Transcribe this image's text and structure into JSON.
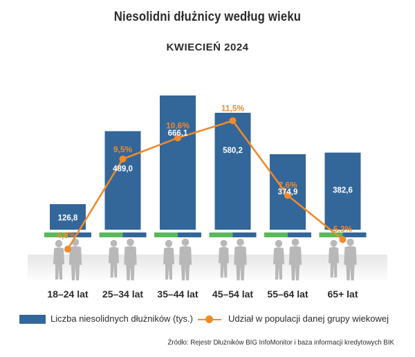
{
  "title": "Niesolidni dłużnicy według wieku",
  "subtitle": "KWIECIEŃ 2024",
  "chart_data": {
    "type": "bar",
    "categories": [
      "18–24 lat",
      "25–34 lat",
      "35–44 lat",
      "45–54 lat",
      "55–64 lat",
      "65+ lat"
    ],
    "series": [
      {
        "name": "Liczba niesolidnych dłużników (tys.)",
        "type": "bar",
        "values": [
          126.8,
          489.0,
          666.1,
          580.2,
          374.9,
          382.6
        ],
        "labels": [
          "126,8",
          "489,0",
          "666,1",
          "580,2",
          "374,9",
          "382,6"
        ],
        "color": "#336699"
      },
      {
        "name": "Udział w populacji danej grupy wiekowej",
        "type": "line",
        "values": [
          4.8,
          9.5,
          10.6,
          11.5,
          7.6,
          5.3
        ],
        "labels": [
          "4,8%",
          "9,5%",
          "10,6%",
          "11,5%",
          "7,6%",
          "5,3%"
        ],
        "color": "#f08a2b"
      }
    ],
    "legend": "bottom",
    "grid": false,
    "icons": [
      "person-silhouettes-icon"
    ]
  },
  "legend": {
    "bar_label": "Liczba niesolidnych dłużników (tys.)",
    "line_label": "Udział w populacji danej grupy wiekowej"
  },
  "source": "Źródło: Rejestr Dłużników BIG InfoMonitor i baza informacji kredytowych BIK",
  "colors": {
    "bar": "#336699",
    "line": "#f08a2b",
    "gender_green": "#5cb85c",
    "gender_blue": "#336699",
    "silhouette": "#b8b8b8"
  }
}
